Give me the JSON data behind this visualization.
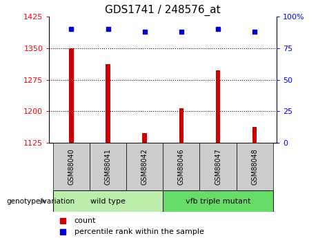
{
  "title": "GDS1741 / 248576_at",
  "categories": [
    "GSM88040",
    "GSM88041",
    "GSM88042",
    "GSM88046",
    "GSM88047",
    "GSM88048"
  ],
  "bar_values": [
    1350,
    1312,
    1148,
    1207,
    1298,
    1162
  ],
  "percentile_values": [
    90,
    90,
    88,
    88,
    90,
    88
  ],
  "ylim_left": [
    1125,
    1425
  ],
  "ylim_right": [
    0,
    100
  ],
  "yticks_left": [
    1125,
    1200,
    1275,
    1350,
    1425
  ],
  "yticks_right": [
    0,
    25,
    50,
    75,
    100
  ],
  "ytick_labels_right": [
    "0",
    "25",
    "50",
    "75",
    "100%"
  ],
  "bar_color": "#cc0000",
  "dot_color": "#0000cc",
  "group1_label": "wild type",
  "group2_label": "vfb triple mutant",
  "group1_indices": [
    0,
    1,
    2
  ],
  "group2_indices": [
    3,
    4,
    5
  ],
  "group1_color": "#bbeeaa",
  "group2_color": "#66dd66",
  "legend_count_label": "count",
  "legend_percentile_label": "percentile rank within the sample",
  "genotype_label": "genotype/variation",
  "tick_label_area_color": "#cccccc",
  "bar_width": 0.12
}
